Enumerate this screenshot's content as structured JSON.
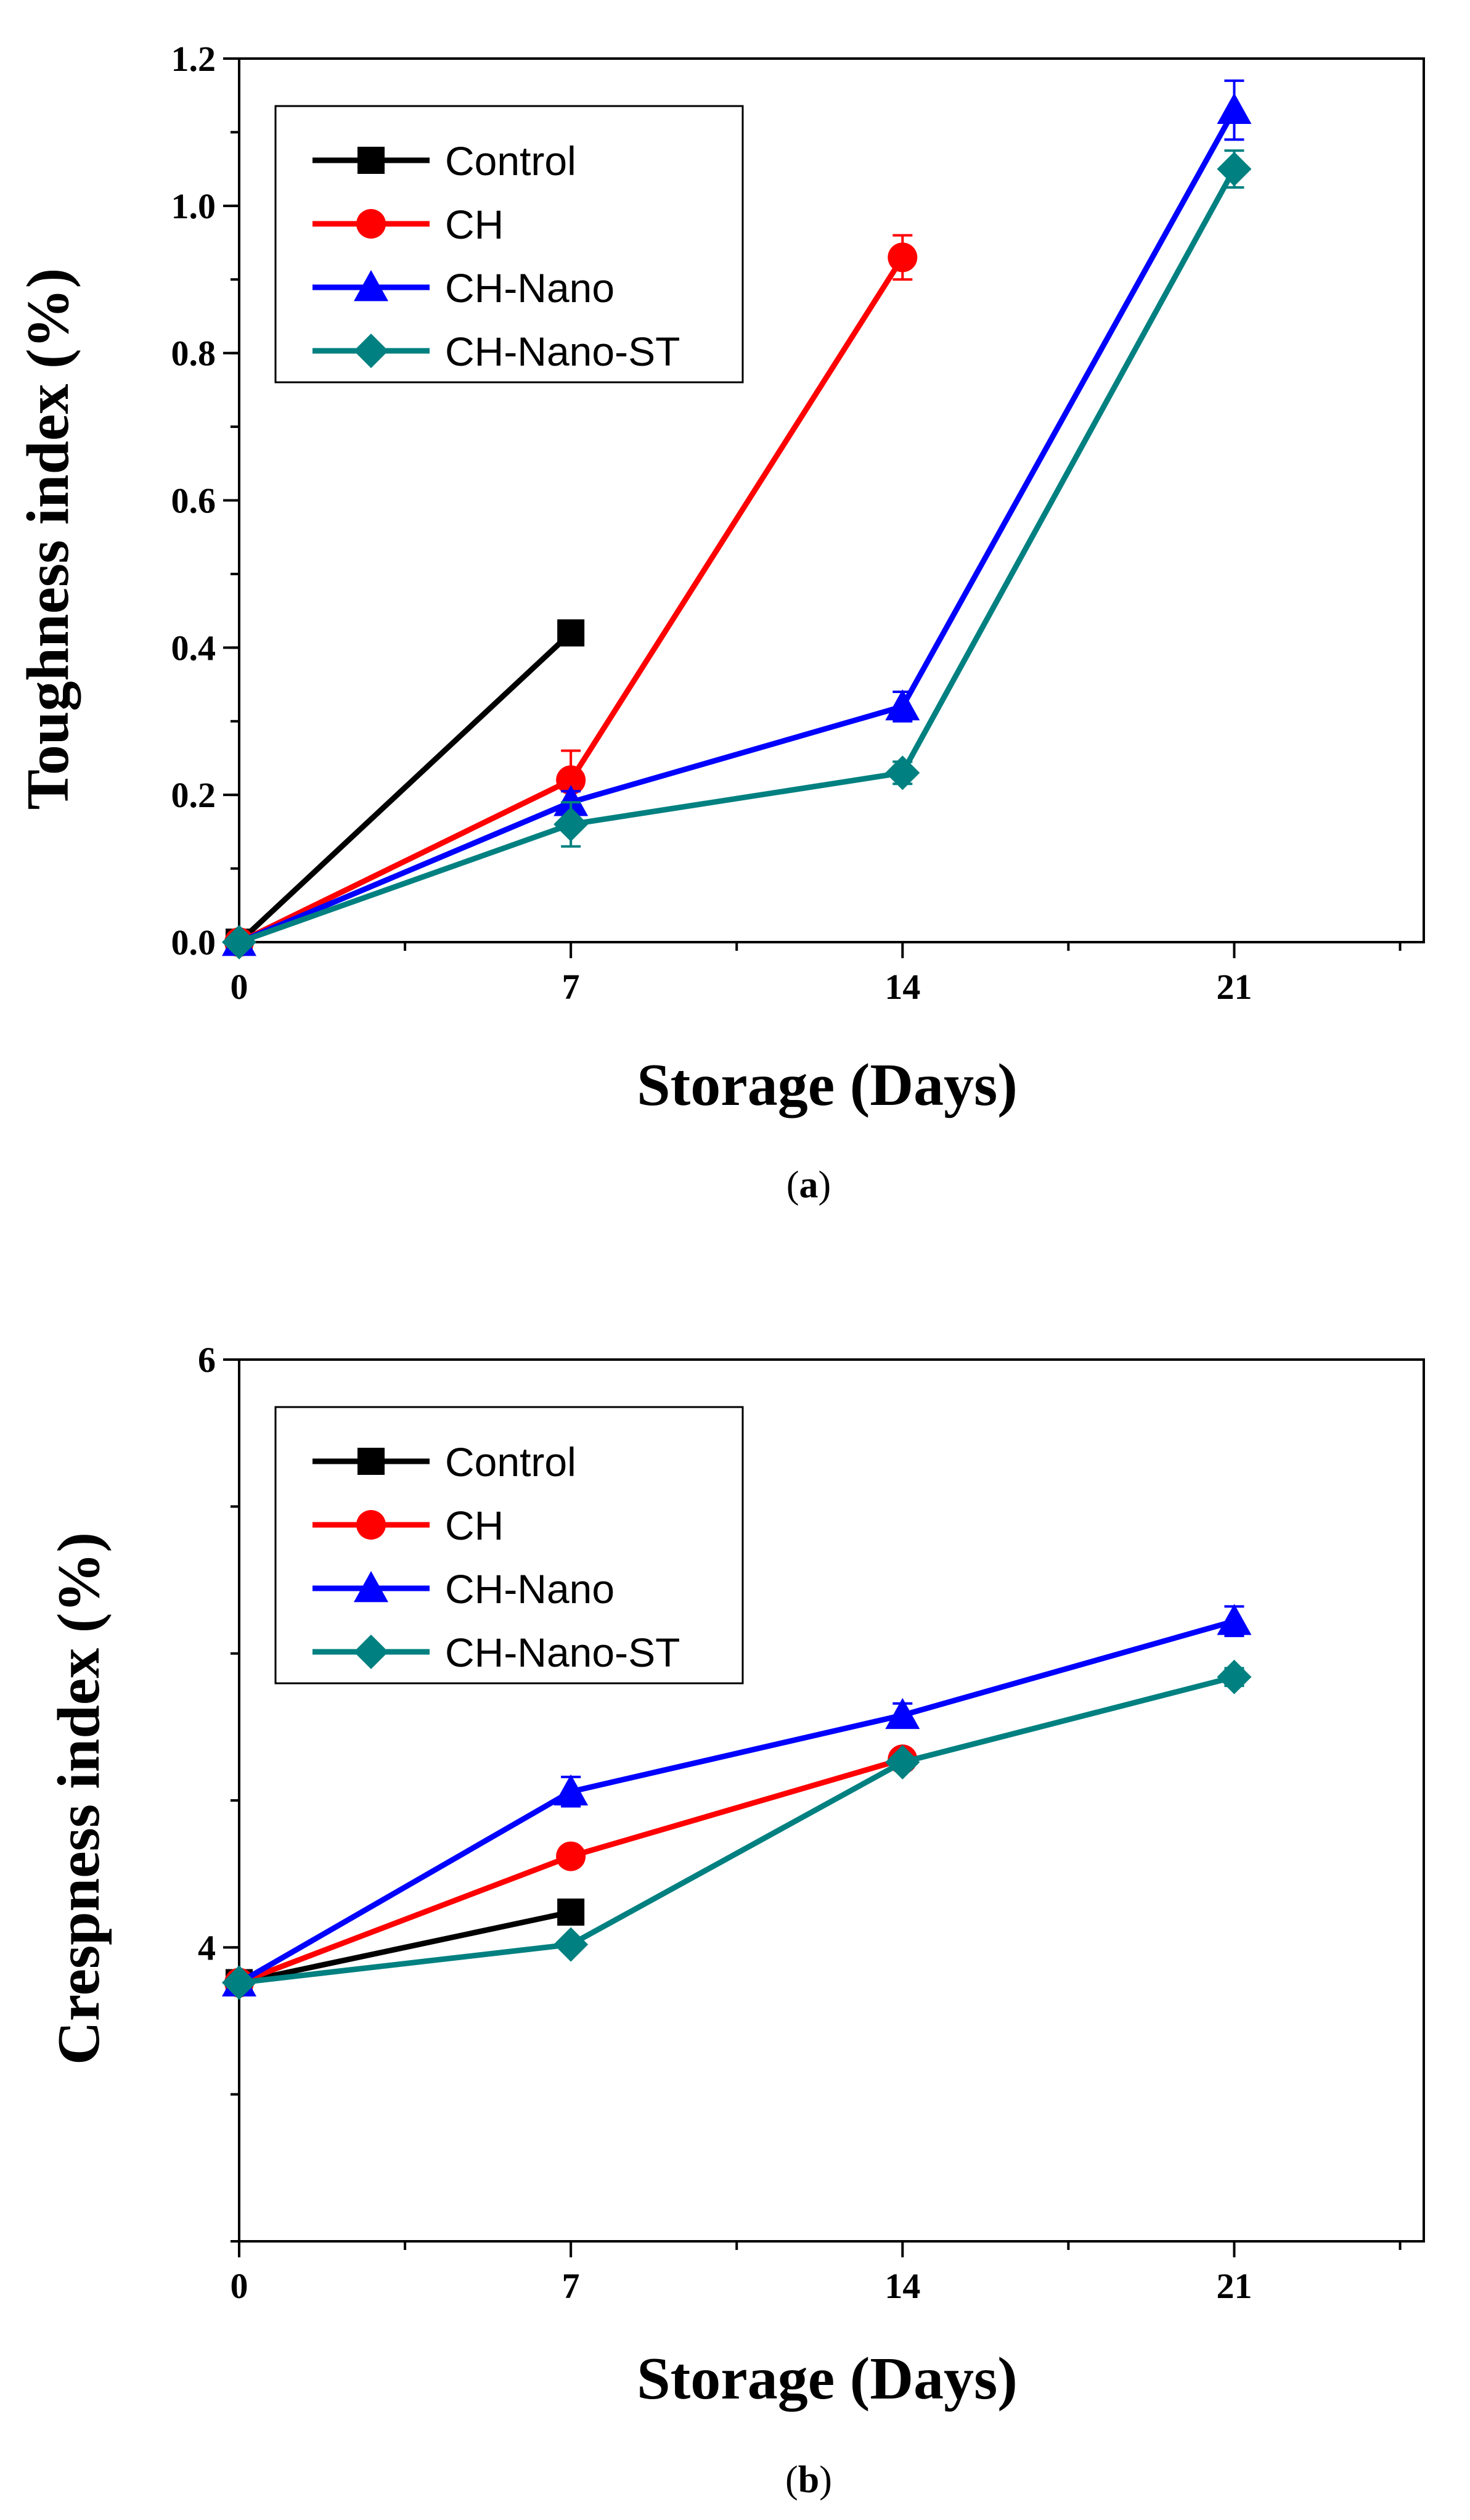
{
  "chart_data": [
    {
      "type": "line",
      "panel_label": "a",
      "xlabel": "Storage (Days)",
      "ylabel": "Toughness index (%)",
      "xlim": [
        0,
        25
      ],
      "ylim": [
        0.0,
        1.2
      ],
      "x_ticks": [
        0,
        7,
        14,
        21
      ],
      "x_tick_labels": [
        "0",
        "7",
        "14",
        "21"
      ],
      "y_ticks": [
        0.0,
        0.2,
        0.4,
        0.6,
        0.8,
        1.0,
        1.2
      ],
      "y_tick_labels": [
        "0.0",
        "0.2",
        "0.4",
        "0.6",
        "0.8",
        "1.0",
        "1.2"
      ],
      "y_minor_step": 0.1,
      "legend_position": "top-left",
      "series": [
        {
          "name": "Control",
          "color": "#000000",
          "marker": "square",
          "x": [
            0,
            7
          ],
          "values": [
            0.0,
            0.42
          ],
          "errors": [
            0.005,
            0.015
          ]
        },
        {
          "name": "CH",
          "color": "#ff0000",
          "marker": "circle",
          "x": [
            0,
            7,
            14
          ],
          "values": [
            0.0,
            0.22,
            0.93
          ],
          "errors": [
            0.005,
            0.04,
            0.03
          ]
        },
        {
          "name": "CH-Nano",
          "color": "#0000ff",
          "marker": "triangle",
          "x": [
            0,
            7,
            14,
            21
          ],
          "values": [
            0.0,
            0.19,
            0.32,
            1.13
          ],
          "errors": [
            0.005,
            0.015,
            0.02,
            0.04
          ]
        },
        {
          "name": "CH-Nano-ST",
          "color": "#008080",
          "marker": "diamond",
          "x": [
            0,
            7,
            14,
            21
          ],
          "values": [
            0.0,
            0.16,
            0.23,
            1.05
          ],
          "errors": [
            0.005,
            0.03,
            0.015,
            0.025
          ]
        }
      ]
    },
    {
      "type": "line",
      "panel_label": "b",
      "xlabel": "Storage (Days)",
      "ylabel": "Crespness index (%)",
      "xlim": [
        0,
        25
      ],
      "ylim": [
        3,
        6
      ],
      "x_ticks": [
        0,
        7,
        14,
        21
      ],
      "x_tick_labels": [
        "0",
        "7",
        "14",
        "21"
      ],
      "y_ticks": [
        4,
        6
      ],
      "y_tick_labels": [
        "4",
        "6"
      ],
      "y_minor_step": 0.5,
      "legend_position": "top-left",
      "series": [
        {
          "name": "Control",
          "color": "#000000",
          "marker": "square",
          "x": [
            0,
            7
          ],
          "values": [
            3.88,
            4.12
          ],
          "errors": [
            0.02,
            0.02
          ]
        },
        {
          "name": "CH",
          "color": "#ff0000",
          "marker": "circle",
          "x": [
            0,
            7,
            14
          ],
          "values": [
            3.88,
            4.31,
            4.64
          ],
          "errors": [
            0.02,
            0.03,
            0.03
          ]
        },
        {
          "name": "CH-Nano",
          "color": "#0000ff",
          "marker": "triangle",
          "x": [
            0,
            7,
            14,
            21
          ],
          "values": [
            3.88,
            4.53,
            4.79,
            5.11
          ],
          "errors": [
            0.02,
            0.05,
            0.04,
            0.05
          ]
        },
        {
          "name": "CH-Nano-ST",
          "color": "#008080",
          "marker": "diamond",
          "x": [
            0,
            7,
            14,
            21
          ],
          "values": [
            3.88,
            4.01,
            4.63,
            4.92
          ],
          "errors": [
            0.02,
            0.02,
            0.02,
            0.03
          ]
        }
      ]
    }
  ]
}
